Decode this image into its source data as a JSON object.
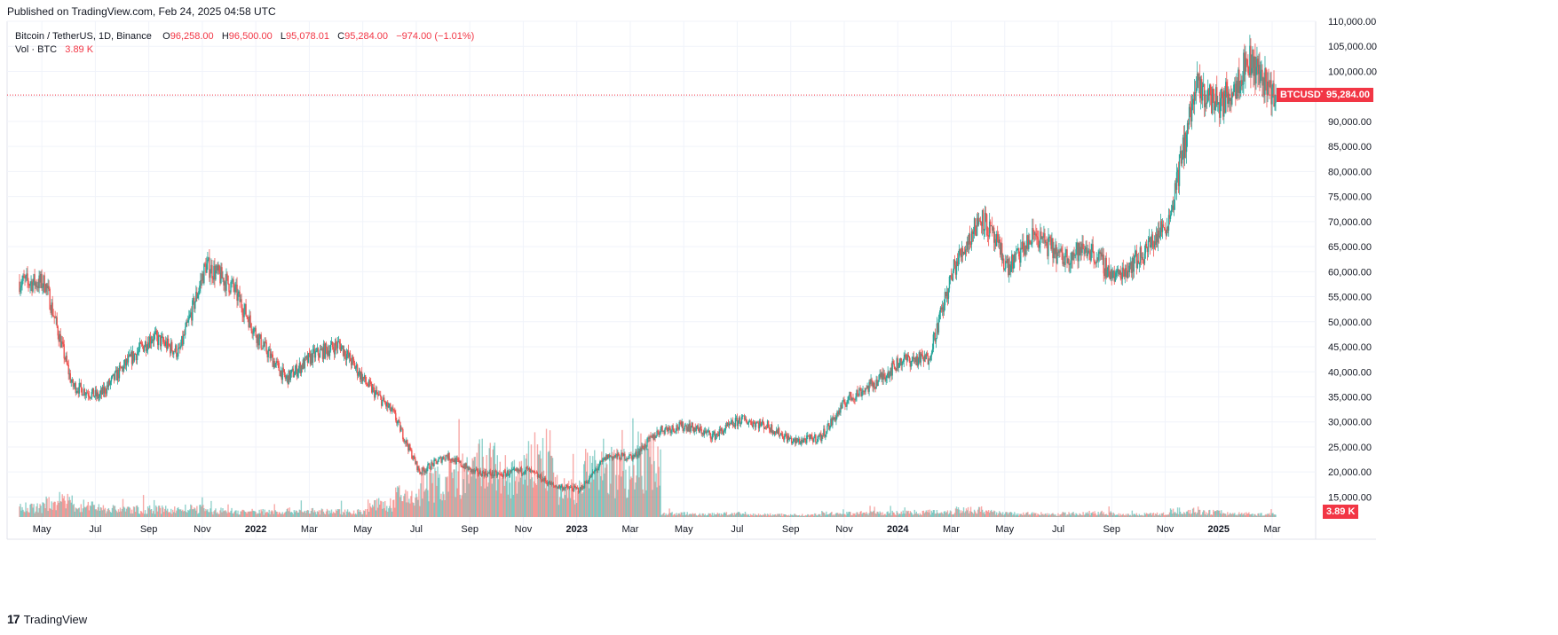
{
  "published": "Published on TradingView.com, Feb 24, 2025 04:58 UTC",
  "legend": {
    "symbol": "Bitcoin / TetherUS, 1D, Binance",
    "o_label": "O",
    "o": "96,258.00",
    "h_label": "H",
    "h": "96,500.00",
    "l_label": "L",
    "l": "95,078.01",
    "c_label": "C",
    "c": "95,284.00",
    "change": "−974.00 (−1.01%)",
    "vol_label": "Vol · BTC",
    "vol": "3.89 K"
  },
  "price_tag": {
    "symbol": "BTCUSDT",
    "price": "95,284.00"
  },
  "volume_tag": "3.89 K",
  "footer": {
    "brand": "TradingView"
  },
  "colors": {
    "up": "#26a69a",
    "down": "#ef5350",
    "last": "#f23645",
    "grid": "#f0f3fa",
    "text": "#131722"
  },
  "chart_data": {
    "type": "candlestick",
    "title": "Bitcoin / TetherUS, 1D, Binance",
    "series_name": "Bitcoin / TetherUS",
    "x_ticks": [
      "May",
      "Jul",
      "Sep",
      "Nov",
      "2022",
      "Mar",
      "May",
      "Jul",
      "Sep",
      "Nov",
      "2023",
      "Mar",
      "May",
      "Jul",
      "Sep",
      "Nov",
      "2024",
      "Mar",
      "May",
      "Jul",
      "Sep",
      "Nov",
      "2025",
      "Mar"
    ],
    "y_ticks": [
      "15,000.00",
      "20,000.00",
      "25,000.00",
      "30,000.00",
      "35,000.00",
      "40,000.00",
      "45,000.00",
      "50,000.00",
      "55,000.00",
      "60,000.00",
      "65,000.00",
      "70,000.00",
      "75,000.00",
      "80,000.00",
      "85,000.00",
      "90,000.00",
      "95,000.00",
      "100,000.00",
      "105,000.00",
      "110,000.00"
    ],
    "ylim": [
      11000,
      110000
    ],
    "last_price": 95284,
    "monthly_close": [
      [
        "2021-04",
        57700
      ],
      [
        "2021-05",
        37300
      ],
      [
        "2021-06",
        35000
      ],
      [
        "2021-07",
        41500
      ],
      [
        "2021-08",
        47100
      ],
      [
        "2021-09",
        43800
      ],
      [
        "2021-10",
        61300
      ],
      [
        "2021-11",
        57000
      ],
      [
        "2021-12",
        46300
      ],
      [
        "2022-01",
        38500
      ],
      [
        "2022-02",
        43200
      ],
      [
        "2022-03",
        45500
      ],
      [
        "2022-04",
        37700
      ],
      [
        "2022-05",
        31800
      ],
      [
        "2022-06",
        19900
      ],
      [
        "2022-07",
        23300
      ],
      [
        "2022-08",
        20000
      ],
      [
        "2022-09",
        19400
      ],
      [
        "2022-10",
        20500
      ],
      [
        "2022-11",
        17200
      ],
      [
        "2022-12",
        16500
      ],
      [
        "2023-01",
        23100
      ],
      [
        "2023-02",
        23100
      ],
      [
        "2023-03",
        28500
      ],
      [
        "2023-04",
        29200
      ],
      [
        "2023-05",
        27200
      ],
      [
        "2023-06",
        30500
      ],
      [
        "2023-07",
        29200
      ],
      [
        "2023-08",
        26000
      ],
      [
        "2023-09",
        27000
      ],
      [
        "2023-10",
        34600
      ],
      [
        "2023-11",
        37700
      ],
      [
        "2023-12",
        42300
      ],
      [
        "2024-01",
        42600
      ],
      [
        "2024-02",
        61100
      ],
      [
        "2024-03",
        71300
      ],
      [
        "2024-04",
        60700
      ],
      [
        "2024-05",
        67500
      ],
      [
        "2024-06",
        62700
      ],
      [
        "2024-07",
        64600
      ],
      [
        "2024-08",
        58900
      ],
      [
        "2024-09",
        63300
      ],
      [
        "2024-10",
        70300
      ],
      [
        "2024-11",
        96400
      ],
      [
        "2024-12",
        93400
      ],
      [
        "2025-01",
        102400
      ],
      [
        "2025-02",
        95284
      ]
    ],
    "volume": {
      "name": "Vol · BTC",
      "last": 3890,
      "monthly_avg_k": [
        [
          "2021-04",
          70
        ],
        [
          "2021-05",
          110
        ],
        [
          "2021-06",
          85
        ],
        [
          "2021-07",
          60
        ],
        [
          "2021-08",
          55
        ],
        [
          "2021-09",
          55
        ],
        [
          "2021-10",
          60
        ],
        [
          "2021-11",
          45
        ],
        [
          "2021-12",
          40
        ],
        [
          "2022-01",
          40
        ],
        [
          "2022-02",
          45
        ],
        [
          "2022-03",
          40
        ],
        [
          "2022-04",
          40
        ],
        [
          "2022-05",
          90
        ],
        [
          "2022-06",
          150
        ],
        [
          "2022-07",
          250
        ],
        [
          "2022-08",
          300
        ],
        [
          "2022-09",
          380
        ],
        [
          "2022-10",
          300
        ],
        [
          "2022-11",
          420
        ],
        [
          "2022-12",
          200
        ],
        [
          "2023-01",
          330
        ],
        [
          "2023-02",
          350
        ],
        [
          "2023-03",
          420
        ],
        [
          "2023-04",
          25
        ],
        [
          "2023-05",
          20
        ],
        [
          "2023-06",
          25
        ],
        [
          "2023-07",
          18
        ],
        [
          "2023-08",
          18
        ],
        [
          "2023-09",
          15
        ],
        [
          "2023-10",
          25
        ],
        [
          "2023-11",
          30
        ],
        [
          "2023-12",
          30
        ],
        [
          "2024-01",
          35
        ],
        [
          "2024-02",
          40
        ],
        [
          "2024-03",
          55
        ],
        [
          "2024-04",
          35
        ],
        [
          "2024-05",
          25
        ],
        [
          "2024-06",
          20
        ],
        [
          "2024-07",
          25
        ],
        [
          "2024-08",
          30
        ],
        [
          "2024-09",
          20
        ],
        [
          "2024-10",
          22
        ],
        [
          "2024-11",
          45
        ],
        [
          "2024-12",
          35
        ],
        [
          "2025-01",
          25
        ],
        [
          "2025-02",
          20
        ]
      ]
    }
  }
}
